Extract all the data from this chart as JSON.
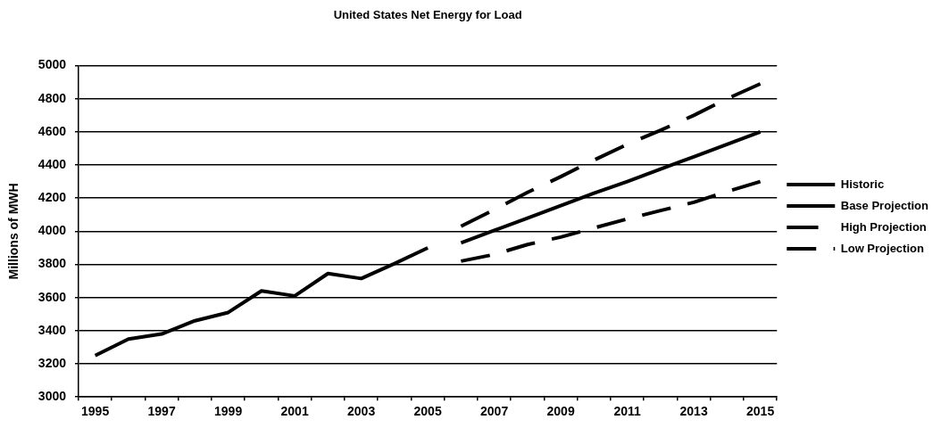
{
  "chart_data": {
    "type": "line",
    "title": "United States Net Energy for Load",
    "ylabel": "Millions of MWH",
    "categories": [
      "1995",
      null,
      "1997",
      null,
      "1999",
      null,
      "2001",
      null,
      "2003",
      null,
      "2005",
      null,
      "2007",
      null,
      "2009",
      null,
      "2011",
      null,
      "2013",
      null,
      "2015"
    ],
    "series": [
      {
        "name": "Historic",
        "color": "#000000",
        "line_style": "solid",
        "values": [
          3250,
          3350,
          3380,
          3460,
          3510,
          3640,
          3610,
          3745,
          3715,
          3805,
          3900,
          null,
          null,
          null,
          null,
          null,
          null,
          null,
          null,
          null,
          null
        ]
      },
      {
        "name": "Base Projection",
        "color": "#000000",
        "line_style": "solid",
        "values": [
          null,
          null,
          null,
          null,
          null,
          null,
          null,
          null,
          null,
          null,
          null,
          3930,
          4005,
          4080,
          4155,
          4230,
          4300,
          4375,
          4450,
          4525,
          4600
        ]
      },
      {
        "name": "High Projection",
        "color": "#000000",
        "line_style": "dashed",
        "values": [
          null,
          null,
          null,
          null,
          null,
          null,
          null,
          null,
          null,
          null,
          null,
          4030,
          4130,
          4235,
          4330,
          4430,
          4525,
          4610,
          4700,
          4800,
          4890
        ]
      },
      {
        "name": "Low Projection",
        "color": "#000000",
        "line_style": "dashed",
        "values": [
          null,
          null,
          null,
          null,
          null,
          null,
          null,
          null,
          null,
          null,
          null,
          3820,
          3860,
          3920,
          3965,
          4020,
          4075,
          4125,
          4175,
          4240,
          4300
        ]
      }
    ],
    "ylim": [
      3000,
      5000
    ],
    "yticks": [
      3000,
      3200,
      3400,
      3600,
      3800,
      4000,
      4200,
      4400,
      4600,
      4800,
      5000
    ],
    "grid": "y",
    "legend": "right",
    "marker": "none"
  }
}
